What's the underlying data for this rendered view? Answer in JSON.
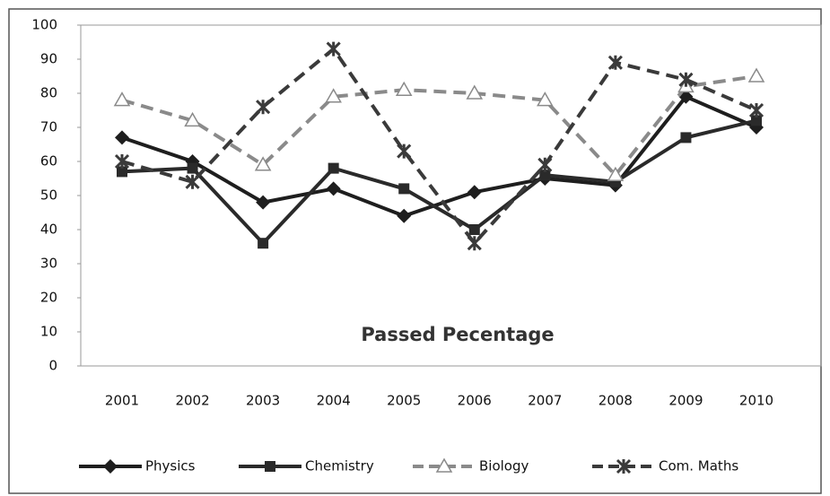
{
  "chart_data": {
    "type": "line",
    "title": "Passed Pecentage",
    "categories": [
      "2001",
      "2002",
      "2003",
      "2004",
      "2005",
      "2006",
      "2007",
      "2008",
      "2009",
      "2010"
    ],
    "series": [
      {
        "name": "Physics",
        "color": "#1e1e1e",
        "dashed": false,
        "marker": "diamond",
        "values": [
          67,
          60,
          48,
          52,
          44,
          51,
          55,
          53,
          79,
          70
        ]
      },
      {
        "name": "Chemistry",
        "color": "#2a2a2a",
        "dashed": false,
        "marker": "square",
        "values": [
          57,
          58,
          36,
          58,
          52,
          40,
          56,
          54,
          67,
          72
        ]
      },
      {
        "name": "Biology",
        "color": "#8a8a8a",
        "dashed": true,
        "marker": "triangle",
        "values": [
          78,
          72,
          59,
          79,
          81,
          80,
          78,
          56,
          82,
          85
        ]
      },
      {
        "name": "Com. Maths",
        "color": "#3a3a3a",
        "dashed": true,
        "marker": "star",
        "values": [
          60,
          54,
          76,
          93,
          63,
          36,
          59,
          89,
          84,
          75
        ]
      }
    ],
    "ylim": [
      0,
      100
    ],
    "yticks": [
      0,
      10,
      20,
      30,
      40,
      50,
      60,
      70,
      80,
      90,
      100
    ],
    "grid": false,
    "legend": "bottom"
  }
}
